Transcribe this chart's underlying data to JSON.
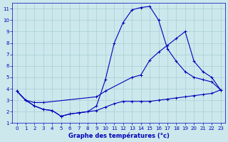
{
  "xlabel": "Graphe des températures (°c)",
  "bg_color": "#cce8ec",
  "grid_color": "#a8cdd4",
  "line_color": "#0000bb",
  "xlim": [
    -0.5,
    23.5
  ],
  "ylim": [
    1,
    11.5
  ],
  "xticks": [
    0,
    1,
    2,
    3,
    4,
    5,
    6,
    7,
    8,
    9,
    10,
    11,
    12,
    13,
    14,
    15,
    16,
    17,
    18,
    19,
    20,
    21,
    22,
    23
  ],
  "yticks": [
    1,
    2,
    3,
    4,
    5,
    6,
    7,
    8,
    9,
    10,
    11
  ],
  "series": [
    {
      "x": [
        0,
        1,
        2,
        3,
        4,
        5,
        6,
        7,
        8,
        9,
        10,
        11,
        12,
        13,
        14,
        15,
        16,
        17,
        18,
        19,
        20,
        21,
        22,
        23
      ],
      "y": [
        3.8,
        3.0,
        2.5,
        2.2,
        2.1,
        1.6,
        1.8,
        1.9,
        2.0,
        2.1,
        2.4,
        2.7,
        2.9,
        2.9,
        2.9,
        2.9,
        3.0,
        3.1,
        3.2,
        3.3,
        3.4,
        3.5,
        3.6,
        3.9
      ]
    },
    {
      "x": [
        0,
        1,
        2,
        3,
        4,
        5,
        6,
        7,
        8,
        9,
        10,
        11,
        12,
        13,
        14,
        15,
        16,
        17,
        18,
        19,
        20,
        21,
        22,
        23
      ],
      "y": [
        3.8,
        3.0,
        2.5,
        2.2,
        2.1,
        1.6,
        1.8,
        1.9,
        2.0,
        2.5,
        4.8,
        8.0,
        9.8,
        10.9,
        11.1,
        11.2,
        10.0,
        7.5,
        6.4,
        5.5,
        5.0,
        4.8,
        4.6,
        3.9
      ]
    },
    {
      "x": [
        0,
        1,
        2,
        3,
        9,
        10,
        13,
        14,
        15,
        16,
        17,
        18,
        19,
        20,
        21,
        22,
        23
      ],
      "y": [
        3.8,
        3.0,
        2.8,
        2.8,
        3.3,
        3.8,
        5.0,
        5.2,
        6.5,
        7.2,
        7.8,
        8.4,
        9.0,
        6.4,
        5.5,
        5.0,
        3.9
      ]
    }
  ]
}
